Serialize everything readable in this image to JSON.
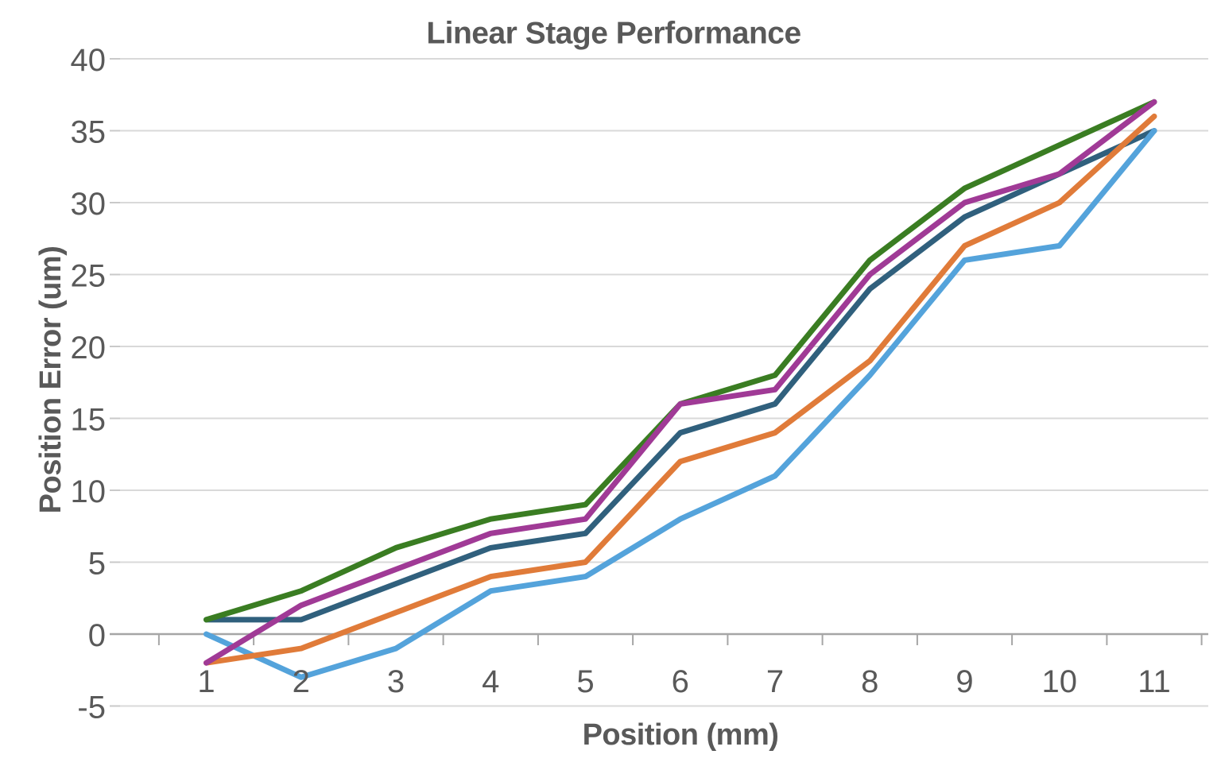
{
  "chart": {
    "title": "Linear Stage Performance",
    "x_axis": {
      "title": "Position (mm)",
      "tick_labels": [
        "1",
        "2",
        "3",
        "4",
        "5",
        "6",
        "7",
        "8",
        "9",
        "10",
        "11"
      ]
    },
    "y_axis": {
      "title": "Position Error (um)",
      "tick_labels": [
        "40",
        "35",
        "30",
        "25",
        "20",
        "15",
        "10",
        "5",
        "0",
        "-5"
      ]
    }
  },
  "chart_data": {
    "type": "line",
    "title": "Linear Stage Performance",
    "xlabel": "Position (mm)",
    "ylabel": "Position Error (um)",
    "x": [
      1,
      2,
      3,
      4,
      5,
      6,
      7,
      8,
      9,
      10,
      11
    ],
    "xlim": [
      1,
      11
    ],
    "ylim": [
      -5,
      40
    ],
    "y_tick_step": 5,
    "grid": "horizontal",
    "legend_position": "none",
    "series": [
      {
        "name": "dark-teal-series",
        "color": "#30607D",
        "values": [
          1,
          1,
          3.5,
          6,
          7,
          14,
          16,
          24,
          29,
          32,
          35
        ]
      },
      {
        "name": "light-blue-series",
        "color": "#54A3DB",
        "values": [
          0,
          -3,
          -1,
          3,
          4,
          8,
          11,
          18,
          26,
          27,
          35
        ]
      },
      {
        "name": "orange-series",
        "color": "#E07B39",
        "values": [
          -2,
          -1,
          1.5,
          4,
          5,
          12,
          14,
          19,
          27,
          30,
          36
        ]
      },
      {
        "name": "green-series",
        "color": "#3A7D22",
        "values": [
          1,
          3,
          6,
          8,
          9,
          16,
          18,
          26,
          31,
          34,
          37
        ]
      },
      {
        "name": "purple-series",
        "color": "#A03A96",
        "values": [
          -2,
          2,
          4.5,
          7,
          8,
          16,
          17,
          25,
          30,
          32,
          37
        ]
      }
    ]
  },
  "colors": {
    "background": "#FFFFFF",
    "text": "#595959",
    "gridline": "#D9D9D9",
    "axis_line": "#A6A6A6",
    "minor_stub": "#C9C9C9"
  }
}
